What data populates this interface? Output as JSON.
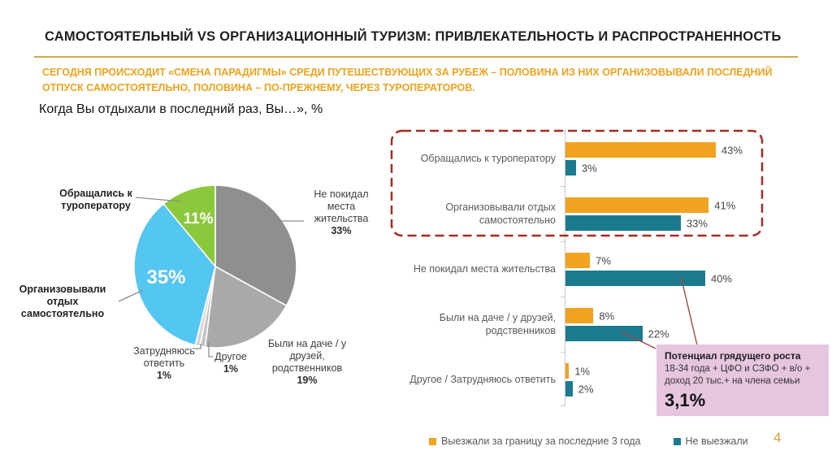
{
  "slide": {
    "title": "САМОСТОЯТЕЛЬНЫЙ VS ОРГАНИЗАЦИОННЫЙ ТУРИЗМ: ПРИВЛЕКАТЕЛЬНОСТЬ И РАСПРОСТРАНЕННОСТЬ",
    "subtitle": "СЕГОДНЯ ПРОИСХОДИТ «СМЕНА ПАРАДИГМЫ» СРЕДИ ПУТЕШЕСТВУЮЩИХ ЗА РУБЕЖ – ПОЛОВИНА ИЗ НИХ ОРГАНИЗОВЫВАЛИ ПОСЛЕДНИЙ ОТПУСК САМОСТОЯТЕЛЬНО, ПОЛОВИНА – ПО-ПРЕЖНЕМУ, ЧЕРЕЗ ТУРОПЕРАТОРОВ.",
    "question": "Когда Вы отдыхали в последний раз, Вы…», %",
    "page_number": "4"
  },
  "colors": {
    "accent_gold": "#D2A94E",
    "subtitle_orange": "#EFA21C",
    "bar_orange": "#EFA31E",
    "bar_teal": "#1B7A8E",
    "pie_green": "#8CC83C",
    "pie_blue": "#53C6F1",
    "pie_gray_dark": "#8F8F8F",
    "pie_gray_mid": "#A9A9A9",
    "pie_gray_light": "#C2C2C2",
    "pie_gray_lighter": "#D8D8D8",
    "highlight_red": "#A62B22",
    "connector_red": "#9E4A43",
    "callout_pink": "#E6C5DE",
    "text_gray": "#595959"
  },
  "chart_data": [
    {
      "type": "pie",
      "title": "Когда Вы отдыхали в последний раз, Вы…», %",
      "slices": [
        {
          "label": "Не покидал места жительства",
          "value": 33,
          "color": "#8F8F8F",
          "pct_position": "outside"
        },
        {
          "label": "Были на даче / у друзей, родственников",
          "value": 19,
          "color": "#A9A9A9",
          "pct_position": "outside"
        },
        {
          "label": "Другое",
          "value": 1,
          "color": "#C2C2C2",
          "pct_position": "outside"
        },
        {
          "label": "Затрудняюсь ответить",
          "value": 1,
          "color": "#D8D8D8",
          "pct_position": "outside"
        },
        {
          "label": "Организовывали отдых самостоятельно",
          "value": 35,
          "color": "#53C6F1",
          "pct_position": "inside"
        },
        {
          "label": "Обращались к туроператору",
          "value": 11,
          "color": "#8CC83C",
          "pct_position": "inside"
        }
      ],
      "start_angle": "top",
      "direction": "clockwise"
    },
    {
      "type": "bar",
      "orientation": "horizontal",
      "categories": [
        "Обращались к туроператору",
        "Организовывали отдых самостоятельно",
        "Не покидал места жительства",
        "Были на даче / у друзей, родственников",
        "Другое / Затрудняюсь ответить"
      ],
      "series": [
        {
          "name": "Выезжали за границу за последние 3 года",
          "color": "#EFA31E",
          "values": [
            43,
            41,
            7,
            8,
            1
          ]
        },
        {
          "name": "Не выезжали",
          "color": "#1B7A8E",
          "values": [
            3,
            33,
            40,
            22,
            2
          ]
        }
      ],
      "value_suffix": "%",
      "xlim": [
        0,
        50
      ],
      "legend_position": "bottom",
      "highlight": "first two categories outlined with red dashed box"
    }
  ],
  "callout": {
    "title": "Потенциал грядущего роста",
    "body": "18-34 года + ЦФО и СЗФО + в/о + доход 20 тыс.+ на члена семьи",
    "value": "3,1%"
  }
}
